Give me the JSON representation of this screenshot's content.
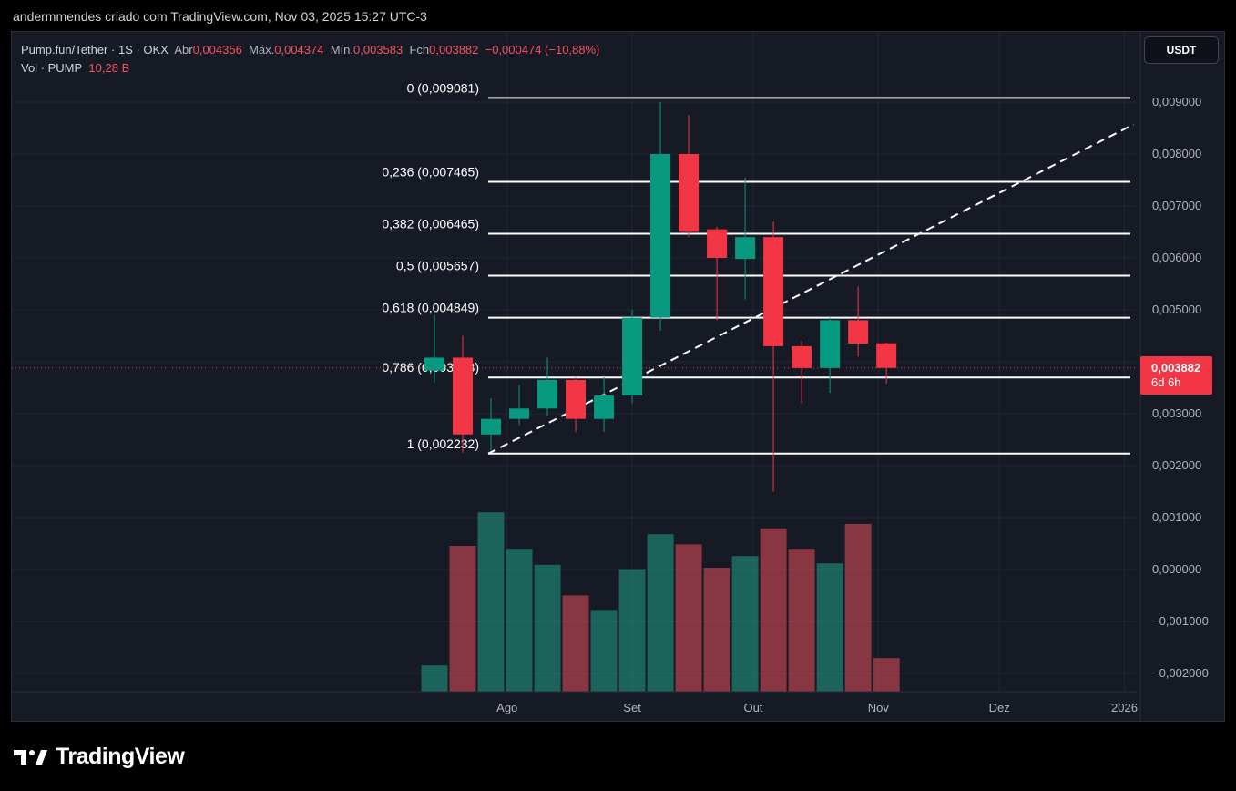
{
  "header": {
    "attribution": "andermmendes criado com TradingView.com, Nov 03, 2025 15:27 UTC-3"
  },
  "legend": {
    "symbol": "Pump.fun/Tether · 1S · OKX",
    "open_label": "Abr",
    "open": "0,004356",
    "high_label": "Máx.",
    "high": "0,004374",
    "low_label": "Mín.",
    "low": "0,003583",
    "close_label": "Fch",
    "close": "0,003882",
    "change": "−0,000474 (−10,88%)",
    "vol_label": "Vol · PUMP",
    "vol_value": "10,28 B"
  },
  "currency_button": "USDT",
  "price_badge": {
    "price": "0,003882",
    "countdown": "6d 6h"
  },
  "colors": {
    "up": "#089981",
    "down": "#f23645",
    "vol_up": "#22ab94",
    "vol_down": "#f7525f",
    "panel_bg": "#161a25"
  },
  "brand": {
    "name": "TradingView",
    "icon": "tradingview-logo-icon"
  },
  "chart_data": {
    "type": "candlestick",
    "y_ticks": [
      "0,009000",
      "0,008000",
      "0,007000",
      "0,006000",
      "0,005000",
      "0,004000",
      "0,003000",
      "0,002000",
      "0,001000",
      "0,000000",
      "−0,001000",
      "−0,002000"
    ],
    "y_tick_values": [
      0.009,
      0.008,
      0.007,
      0.006,
      0.005,
      0.004,
      0.003,
      0.002,
      0.001,
      0.0,
      -0.001,
      -0.002
    ],
    "ylim": [
      -0.00237,
      0.00995
    ],
    "x_ticks": [
      {
        "label": "Ago",
        "date": "2025-08-01"
      },
      {
        "label": "Set",
        "date": "2025-09-01"
      },
      {
        "label": "Out",
        "date": "2025-10-01"
      },
      {
        "label": "Nov",
        "date": "2025-11-01"
      },
      {
        "label": "Dez",
        "date": "2025-12-01"
      },
      {
        "label": "2026",
        "date": "2026-01-01"
      }
    ],
    "candles": [
      {
        "date": "2025-07-14",
        "open": 0.00383,
        "high": 0.0049,
        "low": 0.0036,
        "close": 0.00408,
        "volume": "up",
        "vol": 0.18
      },
      {
        "date": "2025-07-21",
        "open": 0.00408,
        "high": 0.0045,
        "low": 0.00225,
        "close": 0.0026,
        "volume": "down",
        "vol": 1.0
      },
      {
        "date": "2025-07-28",
        "open": 0.0026,
        "high": 0.0033,
        "low": 0.0023,
        "close": 0.0029,
        "volume": "up",
        "vol": 1.23
      },
      {
        "date": "2025-08-04",
        "open": 0.0029,
        "high": 0.00355,
        "low": 0.00278,
        "close": 0.0031,
        "volume": "up",
        "vol": 0.98
      },
      {
        "date": "2025-08-11",
        "open": 0.0031,
        "high": 0.00408,
        "low": 0.00295,
        "close": 0.00365,
        "volume": "up",
        "vol": 0.87
      },
      {
        "date": "2025-08-18",
        "open": 0.00365,
        "high": 0.0037,
        "low": 0.00265,
        "close": 0.0029,
        "volume": "down",
        "vol": 0.66
      },
      {
        "date": "2025-08-25",
        "open": 0.0029,
        "high": 0.0037,
        "low": 0.00265,
        "close": 0.00335,
        "volume": "up",
        "vol": 0.56
      },
      {
        "date": "2025-09-01",
        "open": 0.00335,
        "high": 0.005,
        "low": 0.0032,
        "close": 0.00485,
        "volume": "up",
        "vol": 0.84
      },
      {
        "date": "2025-09-08",
        "open": 0.00485,
        "high": 0.009,
        "low": 0.0046,
        "close": 0.008,
        "volume": "up",
        "vol": 1.08
      },
      {
        "date": "2025-09-15",
        "open": 0.008,
        "high": 0.00875,
        "low": 0.0064,
        "close": 0.0065,
        "volume": "down",
        "vol": 1.01
      },
      {
        "date": "2025-09-22",
        "open": 0.00655,
        "high": 0.0066,
        "low": 0.0048,
        "close": 0.006,
        "volume": "down",
        "vol": 0.85
      },
      {
        "date": "2025-09-29",
        "open": 0.00598,
        "high": 0.00755,
        "low": 0.0052,
        "close": 0.0064,
        "volume": "up",
        "vol": 0.93
      },
      {
        "date": "2025-10-06",
        "open": 0.0064,
        "high": 0.0067,
        "low": 0.0015,
        "close": 0.0043,
        "volume": "down",
        "vol": 1.12
      },
      {
        "date": "2025-10-13",
        "open": 0.0043,
        "high": 0.0044,
        "low": 0.0032,
        "close": 0.00388,
        "volume": "down",
        "vol": 0.98
      },
      {
        "date": "2025-10-20",
        "open": 0.00388,
        "high": 0.00485,
        "low": 0.0034,
        "close": 0.0048,
        "volume": "up",
        "vol": 0.88
      },
      {
        "date": "2025-10-27",
        "open": 0.0048,
        "high": 0.00545,
        "low": 0.0041,
        "close": 0.00435,
        "volume": "down",
        "vol": 1.15
      },
      {
        "date": "2025-11-03",
        "open": 0.004356,
        "high": 0.004374,
        "low": 0.003583,
        "close": 0.003882,
        "volume": "down",
        "vol": 0.23
      }
    ],
    "last_price": 0.003882,
    "fibonacci": [
      {
        "label": "0 (0,009081)",
        "value": 0.009081
      },
      {
        "label": "0,236 (0,007465)",
        "value": 0.007465
      },
      {
        "label": "0,382 (0,006465)",
        "value": 0.006465
      },
      {
        "label": "0,5 (0,005657)",
        "value": 0.005657
      },
      {
        "label": "0,618 (0,004849)",
        "value": 0.004849
      },
      {
        "label": "0,786 (0,003698)",
        "value": 0.003698
      },
      {
        "label": "1 (0,002232)",
        "value": 0.002232
      }
    ],
    "trendline": {
      "from": {
        "date": "2025-07-21",
        "value": 0.002232
      },
      "to": {
        "date": "2026-01-01",
        "value": 0.00857
      }
    }
  }
}
